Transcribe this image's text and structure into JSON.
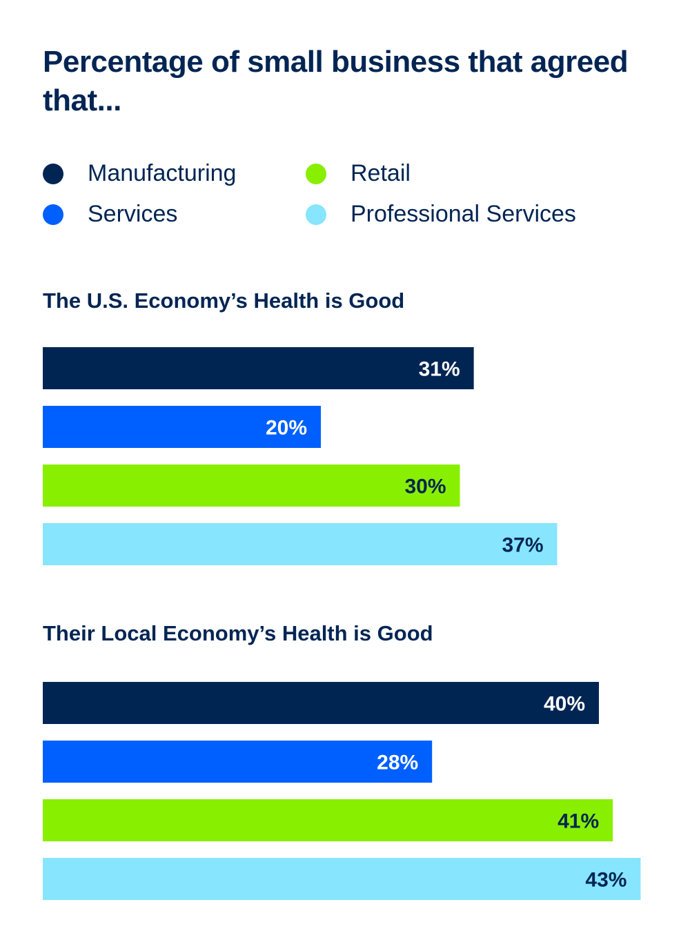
{
  "title": "Percentage of small business that agreed that...",
  "legend": [
    {
      "label": "Manufacturing",
      "color": "#012553"
    },
    {
      "label": "Retail",
      "color": "#89EF00"
    },
    {
      "label": "Services",
      "color": "#0060FF"
    },
    {
      "label": "Professional Services",
      "color": "#87E5FD"
    }
  ],
  "chart_data": [
    {
      "type": "bar",
      "orientation": "horizontal",
      "title": "The U.S. Economy’s Health is Good",
      "categories": [
        "Manufacturing",
        "Services",
        "Retail",
        "Professional Services"
      ],
      "values": [
        31,
        20,
        30,
        37
      ],
      "labels": [
        "31%",
        "20%",
        "30%",
        "37%"
      ],
      "colors": [
        "#012553",
        "#0060FF",
        "#89EF00",
        "#87E5FD"
      ],
      "label_colors": [
        "#ffffff",
        "#ffffff",
        "#012553",
        "#012553"
      ],
      "unit": "%",
      "xlim": [
        0,
        43
      ],
      "grid": false
    },
    {
      "type": "bar",
      "orientation": "horizontal",
      "title": "Their Local Economy’s Health is Good",
      "categories": [
        "Manufacturing",
        "Services",
        "Retail",
        "Professional Services"
      ],
      "values": [
        40,
        28,
        41,
        43
      ],
      "labels": [
        "40%",
        "28%",
        "41%",
        "43%"
      ],
      "colors": [
        "#012553",
        "#0060FF",
        "#89EF00",
        "#87E5FD"
      ],
      "label_colors": [
        "#ffffff",
        "#ffffff",
        "#012553",
        "#012553"
      ],
      "unit": "%",
      "xlim": [
        0,
        43
      ],
      "grid": false
    }
  ]
}
